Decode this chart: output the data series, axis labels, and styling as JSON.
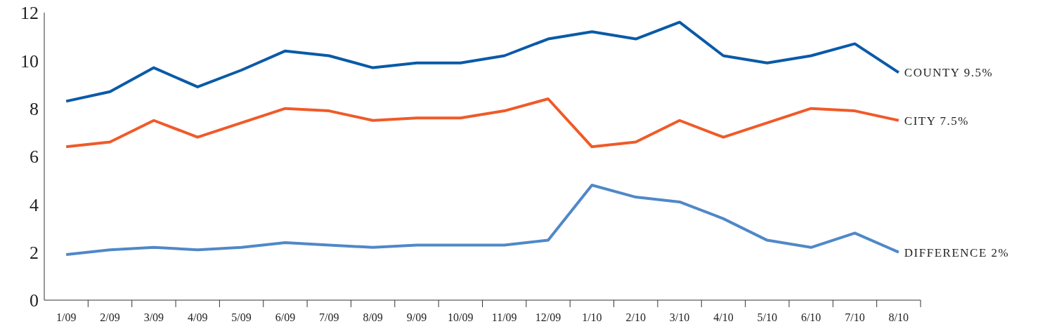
{
  "chart_data": {
    "type": "line",
    "categories": [
      "1/09",
      "2/09",
      "3/09",
      "4/09",
      "5/09",
      "6/09",
      "7/09",
      "8/09",
      "9/09",
      "10/09",
      "11/09",
      "12/09",
      "1/10",
      "2/10",
      "3/10",
      "4/10",
      "5/10",
      "6/10",
      "7/10",
      "8/10"
    ],
    "series": [
      {
        "name": "COUNTY 9.5%",
        "color": "#0a5aa8",
        "values": [
          8.3,
          8.7,
          9.7,
          8.9,
          9.6,
          10.4,
          10.2,
          9.7,
          9.9,
          9.9,
          10.2,
          10.9,
          11.2,
          10.9,
          11.6,
          10.2,
          9.9,
          10.2,
          10.7,
          9.5
        ]
      },
      {
        "name": "CITY 7.5%",
        "color": "#f05a28",
        "values": [
          6.4,
          6.6,
          7.5,
          6.8,
          7.4,
          8.0,
          7.9,
          7.5,
          7.6,
          7.6,
          7.9,
          8.4,
          6.4,
          6.6,
          7.5,
          6.8,
          7.4,
          8.0,
          7.9,
          7.5
        ]
      },
      {
        "name": "DIFFERENCE 2%",
        "color": "#4f88c8",
        "values": [
          1.9,
          2.1,
          2.2,
          2.1,
          2.2,
          2.4,
          2.3,
          2.2,
          2.3,
          2.3,
          2.3,
          2.5,
          4.8,
          4.3,
          4.1,
          3.4,
          2.5,
          2.2,
          2.8,
          2.0
        ]
      }
    ],
    "ylim": [
      0,
      12
    ],
    "yticks": [
      0,
      2,
      4,
      6,
      8,
      10,
      12
    ],
    "marker": "none"
  }
}
